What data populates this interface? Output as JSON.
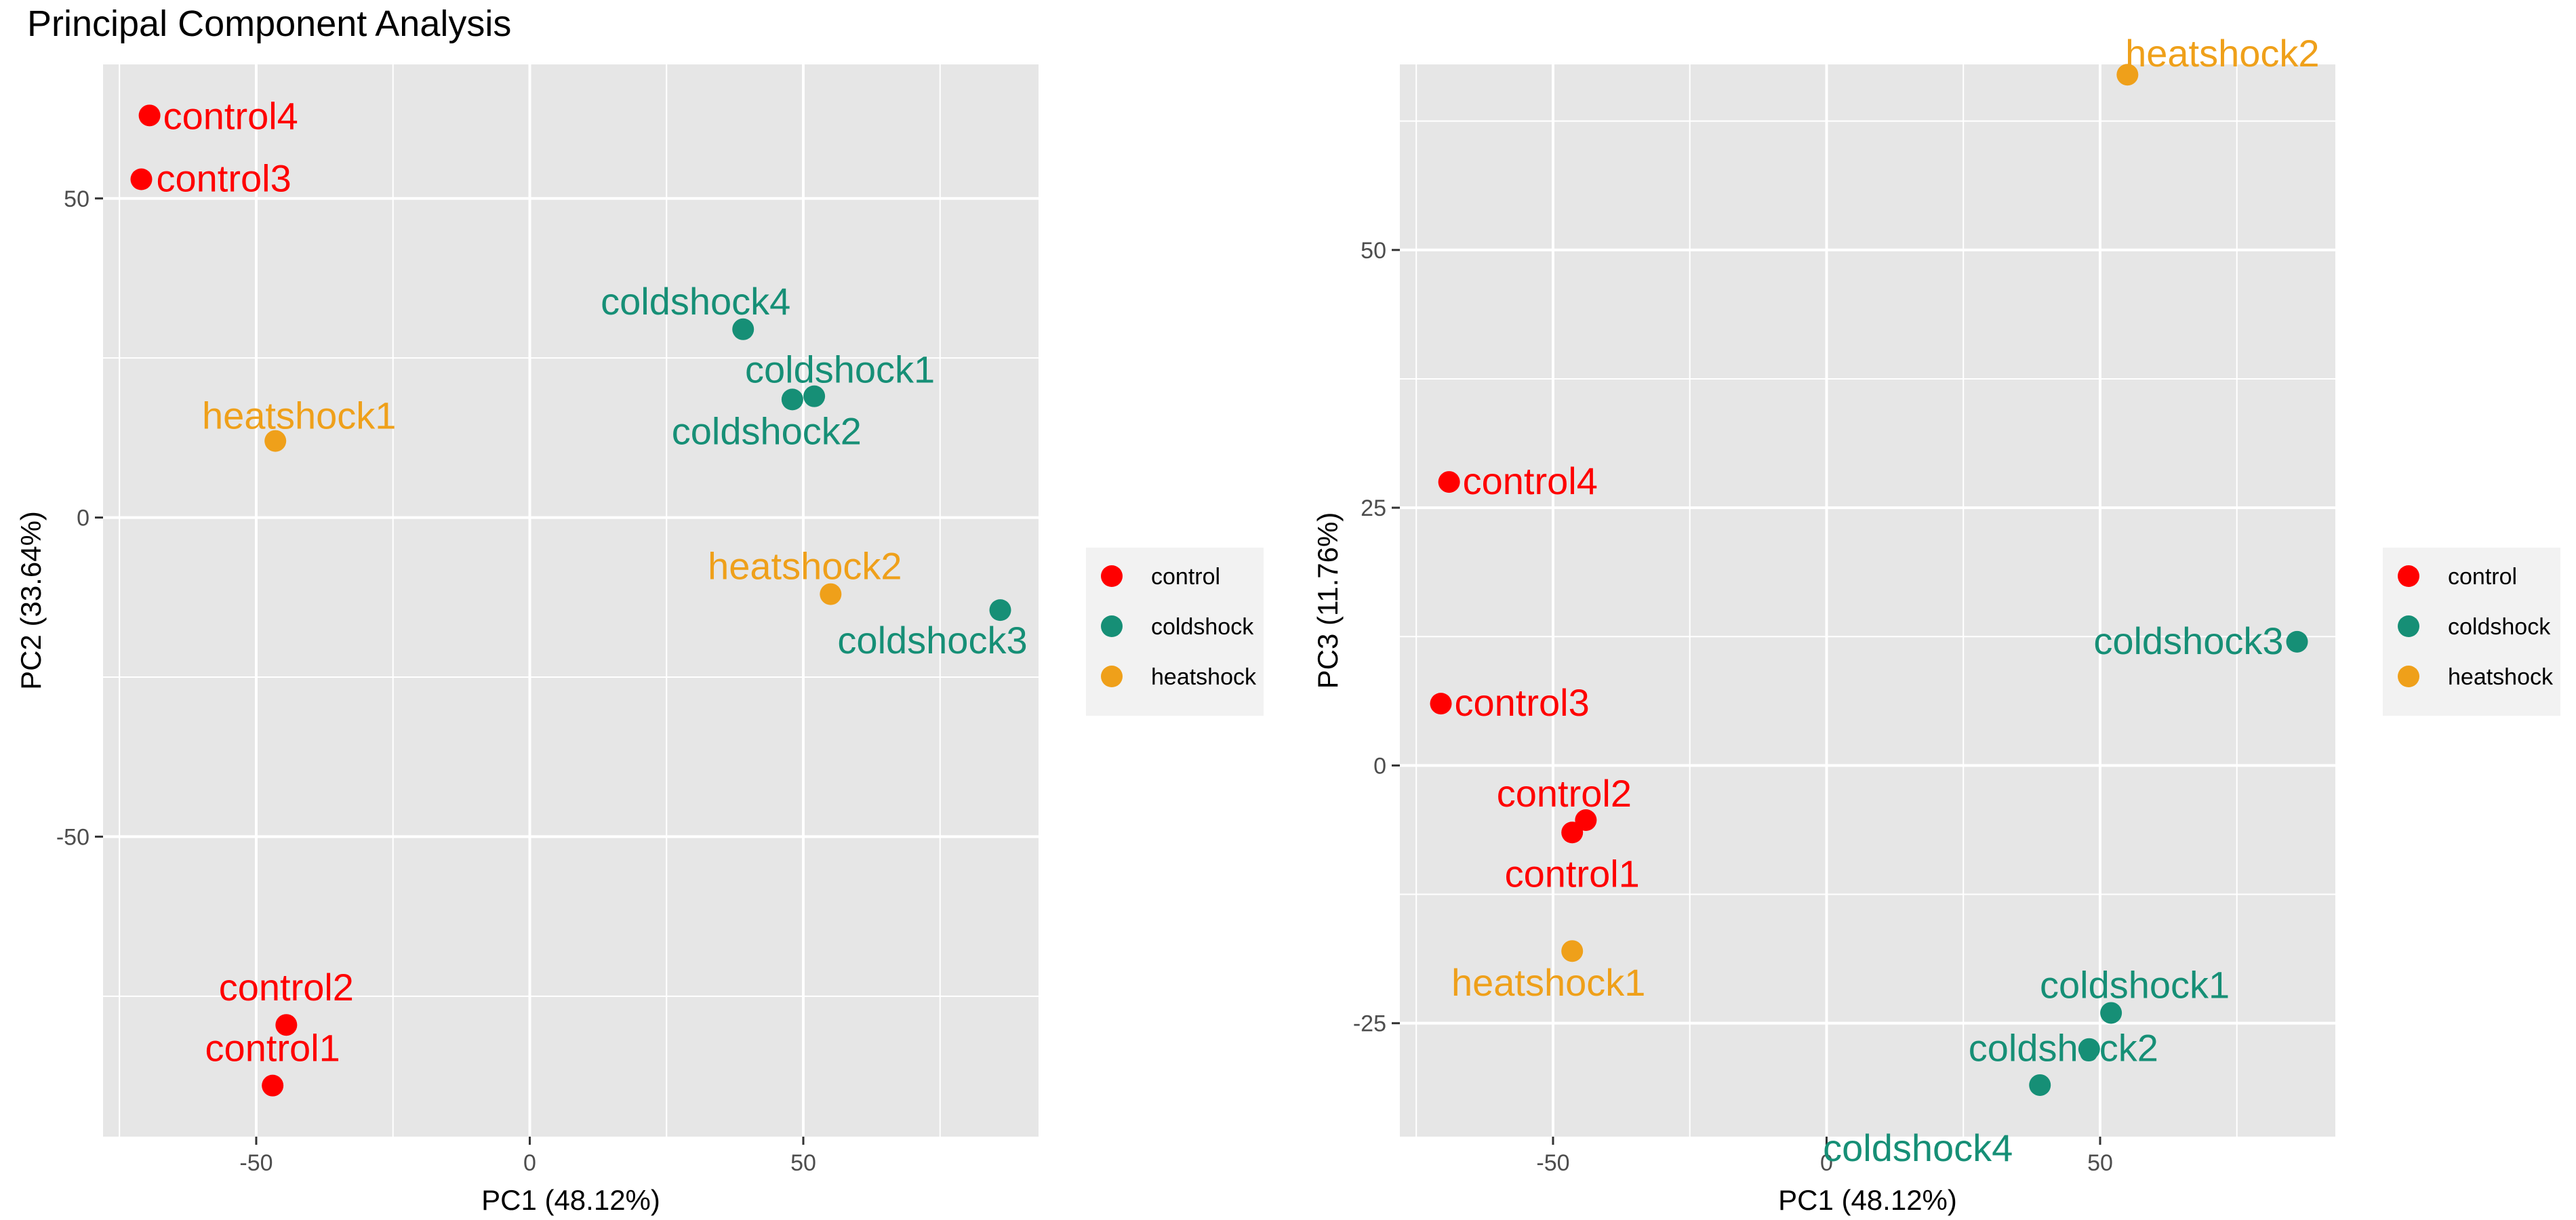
{
  "title": "Principal Component Analysis",
  "colors": {
    "control": "#ff0000",
    "coldshock": "#168f76",
    "heatshock": "#efa01a",
    "panel": "#e6e6e6",
    "grid": "#ffffff"
  },
  "chart_data": [
    {
      "type": "scatter",
      "xlabel": "PC1 (48.12%)",
      "ylabel": "PC2 (33.64%)",
      "xlim": [
        -78,
        93
      ],
      "ylim": [
        -97,
        71
      ],
      "xticks": [
        -50,
        0,
        50
      ],
      "yticks": [
        -50,
        0,
        50
      ],
      "grid": true,
      "legend": {
        "position": "right",
        "entries": [
          "control",
          "coldshock",
          "heatshock"
        ]
      },
      "points": [
        {
          "label": "control1",
          "group": "control",
          "x": -47,
          "y": -89
        },
        {
          "label": "control2",
          "group": "control",
          "x": -44.5,
          "y": -79.5
        },
        {
          "label": "control3",
          "group": "control",
          "x": -71,
          "y": 53
        },
        {
          "label": "control4",
          "group": "control",
          "x": -69.5,
          "y": 63
        },
        {
          "label": "coldshock1",
          "group": "coldshock",
          "x": 52,
          "y": 19
        },
        {
          "label": "coldshock2",
          "group": "coldshock",
          "x": 48,
          "y": 18.5
        },
        {
          "label": "coldshock3",
          "group": "coldshock",
          "x": 86,
          "y": -14.5
        },
        {
          "label": "coldshock4",
          "group": "coldshock",
          "x": 39,
          "y": 29.5
        },
        {
          "label": "heatshock1",
          "group": "heatshock",
          "x": -46.5,
          "y": 12
        },
        {
          "label": "heatshock2",
          "group": "heatshock",
          "x": 55,
          "y": -12
        }
      ]
    },
    {
      "type": "scatter",
      "xlabel": "PC1 (48.12%)",
      "ylabel": "PC3 (11.76%)",
      "xlim": [
        -78,
        93
      ],
      "ylim": [
        -36,
        68
      ],
      "xticks": [
        -50,
        0,
        50
      ],
      "yticks": [
        -25,
        0,
        25,
        50
      ],
      "grid": true,
      "legend": {
        "position": "right",
        "entries": [
          "control",
          "coldshock",
          "heatshock"
        ]
      },
      "points": [
        {
          "label": "control1",
          "group": "control",
          "x": -46.5,
          "y": -6.5
        },
        {
          "label": "control2",
          "group": "control",
          "x": -44,
          "y": -5.3
        },
        {
          "label": "control3",
          "group": "control",
          "x": -70.5,
          "y": 6
        },
        {
          "label": "control4",
          "group": "control",
          "x": -69,
          "y": 27.5
        },
        {
          "label": "coldshock1",
          "group": "coldshock",
          "x": 52,
          "y": -24
        },
        {
          "label": "coldshock2",
          "group": "coldshock",
          "x": 48,
          "y": -27.5
        },
        {
          "label": "coldshock3",
          "group": "coldshock",
          "x": 86,
          "y": 12
        },
        {
          "label": "coldshock4",
          "group": "coldshock",
          "x": 39,
          "y": -31
        },
        {
          "label": "heatshock1",
          "group": "heatshock",
          "x": -46.5,
          "y": -18
        },
        {
          "label": "heatshock2",
          "group": "heatshock",
          "x": 55,
          "y": 67
        }
      ]
    }
  ]
}
